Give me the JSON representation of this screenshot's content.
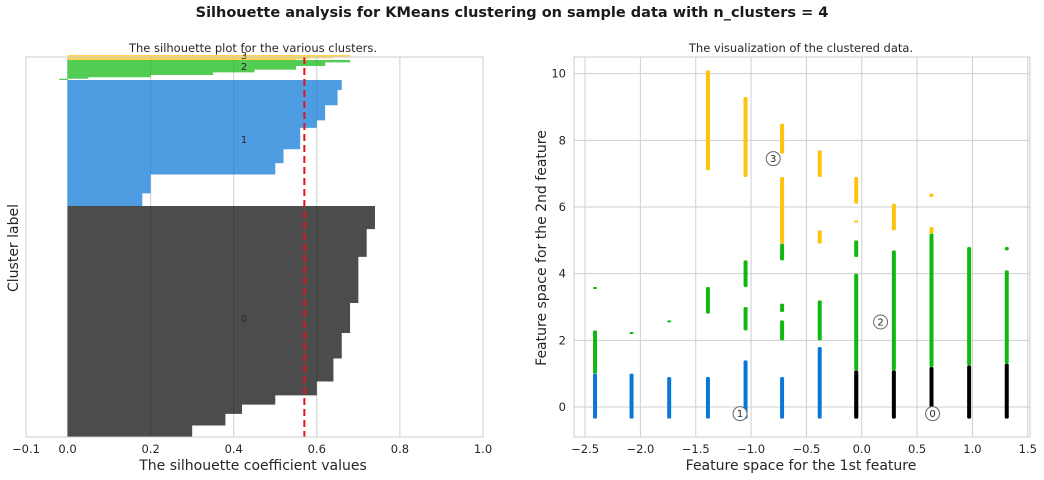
{
  "suptitle": "Silhouette analysis for KMeans clustering on sample data with n_clusters = 4",
  "colors": {
    "c0": "#000000",
    "c1": "#0a77d8",
    "c2": "#11b812",
    "c3": "#fcc40e",
    "avg_line": "#e3141d",
    "grid": "#cfcfcf",
    "frame": "#cccccc"
  },
  "chart_data": [
    {
      "type": "area",
      "title": "The silhouette plot for the various clusters.",
      "xlabel": "The silhouette coefficient values",
      "ylabel": "Cluster label",
      "xlim": [
        -0.1,
        1.0
      ],
      "xticks": [
        -0.1,
        0.0,
        0.2,
        0.4,
        0.6,
        0.8,
        1.0
      ],
      "xtick_labels": [
        "−0.1",
        "0.0",
        "0.2",
        "0.4",
        "0.6",
        "0.8",
        "1.0"
      ],
      "grid": true,
      "average_silhouette_score": 0.57,
      "clusters": [
        {
          "label": "0",
          "color": "c0",
          "steps": [
            [
              0.74,
              0.1
            ],
            [
              0.72,
              0.22
            ],
            [
              0.7,
              0.42
            ],
            [
              0.68,
              0.55
            ],
            [
              0.66,
              0.66
            ],
            [
              0.64,
              0.76
            ],
            [
              0.6,
              0.82
            ],
            [
              0.5,
              0.86
            ],
            [
              0.42,
              0.9
            ],
            [
              0.38,
              0.95
            ],
            [
              0.3,
              1.0
            ]
          ]
        },
        {
          "label": "1",
          "color": "c1",
          "steps": [
            [
              0.66,
              0.08
            ],
            [
              0.65,
              0.2
            ],
            [
              0.62,
              0.32
            ],
            [
              0.6,
              0.38
            ],
            [
              0.56,
              0.55
            ],
            [
              0.52,
              0.66
            ],
            [
              0.5,
              0.75
            ],
            [
              0.2,
              0.9
            ],
            [
              0.18,
              1.0
            ]
          ]
        },
        {
          "label": "2",
          "color": "c2",
          "steps": [
            [
              0.68,
              0.12
            ],
            [
              0.62,
              0.3
            ],
            [
              0.55,
              0.48
            ],
            [
              0.45,
              0.62
            ],
            [
              0.35,
              0.75
            ],
            [
              0.2,
              0.86
            ],
            [
              0.05,
              0.94
            ],
            [
              -0.02,
              1.0
            ]
          ]
        },
        {
          "label": "3",
          "color": "c3",
          "steps": [
            [
              0.68,
              0.35
            ],
            [
              0.64,
              0.65
            ],
            [
              0.58,
              0.85
            ],
            [
              0.55,
              1.0
            ]
          ]
        }
      ]
    },
    {
      "type": "scatter",
      "title": "The visualization of the clustered data.",
      "xlabel": "Feature space for the 1st feature",
      "ylabel": "Feature space for the 2nd feature",
      "xlim": [
        -2.6,
        1.52
      ],
      "ylim": [
        -0.9,
        10.5
      ],
      "xticks": [
        -2.5,
        -2.0,
        -1.5,
        -1.0,
        -0.5,
        0.0,
        0.5,
        1.0,
        1.5
      ],
      "xtick_labels": [
        "−2.5",
        "−2.0",
        "−1.5",
        "−1.0",
        "−0.5",
        "0.0",
        "0.5",
        "1.0",
        "1.5"
      ],
      "yticks": [
        0,
        2,
        4,
        6,
        8,
        10
      ],
      "ytick_labels": [
        "0",
        "2",
        "4",
        "6",
        "8",
        "10"
      ],
      "grid": true,
      "columns": [
        {
          "x": -2.41,
          "segs": [
            [
              "c1",
              -0.35,
              1.0
            ],
            [
              "c2",
              1.0,
              2.3
            ],
            [
              "c2",
              3.55,
              3.6
            ]
          ]
        },
        {
          "x": -2.08,
          "segs": [
            [
              "c1",
              -0.35,
              1.0
            ],
            [
              "c2",
              2.2,
              2.25
            ]
          ]
        },
        {
          "x": -1.74,
          "segs": [
            [
              "c1",
              -0.35,
              0.9
            ],
            [
              "c2",
              2.55,
              2.6
            ]
          ]
        },
        {
          "x": -1.39,
          "segs": [
            [
              "c1",
              -0.35,
              0.9
            ],
            [
              "c2",
              2.8,
              3.6
            ],
            [
              "c3",
              7.1,
              10.1
            ]
          ]
        },
        {
          "x": -1.05,
          "segs": [
            [
              "c1",
              -0.35,
              1.4
            ],
            [
              "c2",
              2.3,
              3.0
            ],
            [
              "c2",
              3.6,
              4.4
            ],
            [
              "c3",
              6.9,
              9.3
            ]
          ]
        },
        {
          "x": -0.72,
          "segs": [
            [
              "c1",
              -0.35,
              0.9
            ],
            [
              "c2",
              2.0,
              2.6
            ],
            [
              "c2",
              2.85,
              3.1
            ],
            [
              "c2",
              4.4,
              4.9
            ],
            [
              "c3",
              4.9,
              6.9
            ],
            [
              "c3",
              7.6,
              8.5
            ]
          ]
        },
        {
          "x": -0.38,
          "segs": [
            [
              "c1",
              -0.35,
              1.8
            ],
            [
              "c2",
              2.0,
              3.2
            ],
            [
              "c3",
              4.9,
              5.3
            ],
            [
              "c3",
              6.9,
              7.7
            ]
          ]
        },
        {
          "x": -0.05,
          "segs": [
            [
              "c1",
              -0.35,
              1.0
            ],
            [
              "c0",
              -0.35,
              1.1
            ],
            [
              "c2",
              1.1,
              4.0
            ],
            [
              "c2",
              4.5,
              5.0
            ],
            [
              "c3",
              5.6,
              5.6
            ],
            [
              "c3",
              6.1,
              6.9
            ]
          ]
        },
        {
          "x": 0.29,
          "segs": [
            [
              "c0",
              -0.35,
              1.1
            ],
            [
              "c2",
              1.1,
              4.7
            ],
            [
              "c3",
              5.3,
              6.1
            ]
          ]
        },
        {
          "x": 0.63,
          "segs": [
            [
              "c0",
              -0.35,
              1.2
            ],
            [
              "c2",
              1.2,
              5.2
            ],
            [
              "c3",
              5.2,
              5.4
            ],
            [
              "c3",
              6.3,
              6.4
            ]
          ]
        },
        {
          "x": 0.97,
          "segs": [
            [
              "c0",
              -0.35,
              1.25
            ],
            [
              "c2",
              1.25,
              4.8
            ]
          ]
        },
        {
          "x": 1.31,
          "segs": [
            [
              "c0",
              -0.35,
              1.3
            ],
            [
              "c2",
              1.3,
              4.1
            ],
            [
              "c2",
              4.7,
              4.8
            ]
          ]
        }
      ],
      "centers": [
        {
          "label": "0",
          "x": 0.64,
          "y": -0.2
        },
        {
          "label": "1",
          "x": -1.1,
          "y": -0.2
        },
        {
          "label": "2",
          "x": 0.17,
          "y": 2.55
        },
        {
          "label": "3",
          "x": -0.8,
          "y": 7.45
        }
      ]
    }
  ]
}
